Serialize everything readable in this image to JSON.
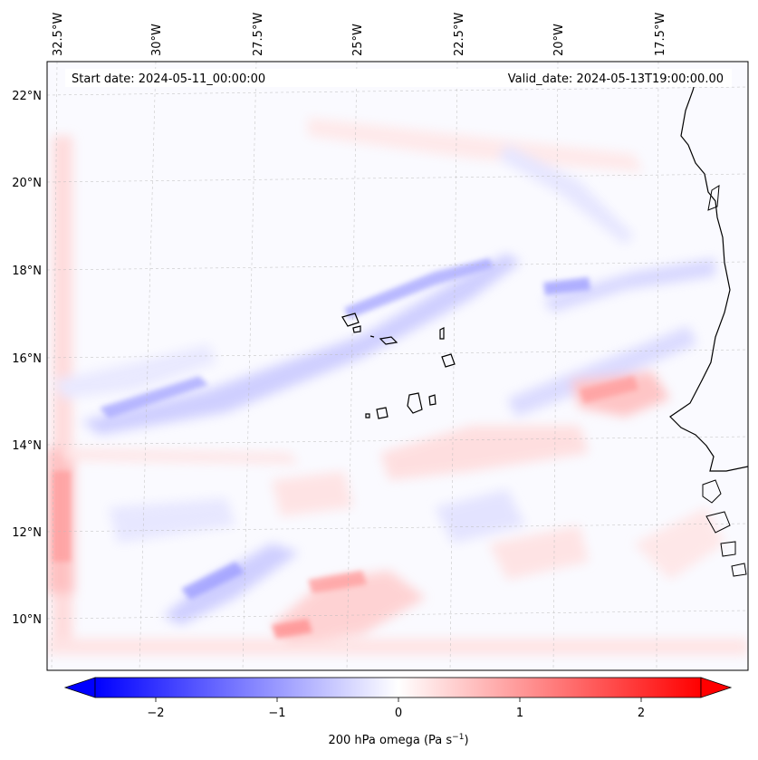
{
  "header": {
    "start": "Start date: 2024-05-11_00:00:00",
    "valid": "Valid_date: 2024-05-13T19:00:00.00"
  },
  "lon_labels": [
    "32.5°W",
    "30°W",
    "27.5°W",
    "25°W",
    "22.5°W",
    "20°W",
    "17.5°W"
  ],
  "lat_labels": [
    "22°N",
    "20°N",
    "18°N",
    "16°N",
    "14°N",
    "12°N",
    "10°N"
  ],
  "colorbar": {
    "ticks": [
      "−2",
      "−1",
      "0",
      "1",
      "2"
    ],
    "label": "200 hPa omega (Pa s",
    "label_sup": "−1",
    "label_close": ")",
    "colors": {
      "min": "#0000ff",
      "mid": "#ffffff",
      "max": "#ff0000"
    },
    "range": [
      -2.7,
      2.7
    ]
  }
}
